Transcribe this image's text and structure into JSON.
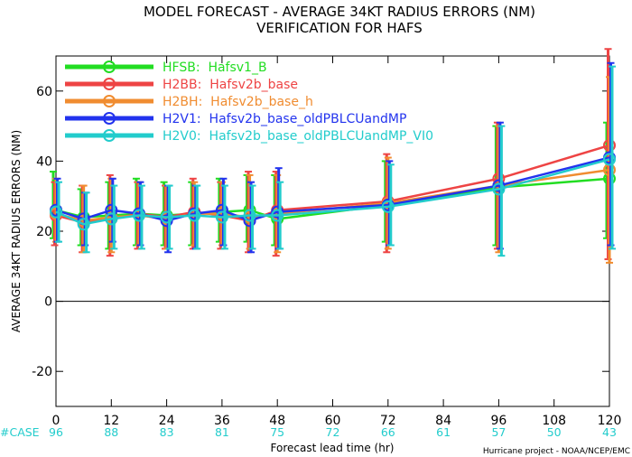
{
  "chart_data": {
    "type": "line",
    "title": "MODEL FORECAST - AVERAGE 34KT RADIUS ERRORS (NM)",
    "subtitle": "VERIFICATION FOR HAFS",
    "xlabel": "Forecast lead time (hr)",
    "ylabel": "AVERAGE 34KT RADIUS ERRORS (NM)",
    "xlim": [
      0,
      120
    ],
    "ylim": [
      -30,
      70
    ],
    "x_ticks": [
      0,
      12,
      24,
      36,
      48,
      60,
      72,
      84,
      96,
      108,
      120
    ],
    "y_ticks": [
      -20,
      0,
      20,
      40,
      60
    ],
    "zero_line": true,
    "grid": false,
    "legend_position": "top-left",
    "case_label": "#CASE",
    "cases": [
      {
        "x": 0,
        "n": "96"
      },
      {
        "x": 12,
        "n": "88"
      },
      {
        "x": 24,
        "n": "83"
      },
      {
        "x": 36,
        "n": "81"
      },
      {
        "x": 48,
        "n": "75"
      },
      {
        "x": 60,
        "n": "72"
      },
      {
        "x": 72,
        "n": "66"
      },
      {
        "x": 84,
        "n": "61"
      },
      {
        "x": 96,
        "n": "57"
      },
      {
        "x": 108,
        "n": "50"
      },
      {
        "x": 120,
        "n": "43"
      }
    ],
    "x": [
      0,
      6,
      12,
      18,
      24,
      30,
      36,
      42,
      48,
      72,
      96,
      120
    ],
    "series": [
      {
        "name": "HFSB:  Hafsv1_B",
        "color": "#22dd22",
        "values": [
          26.0,
          24.0,
          24.5,
          25.0,
          24.5,
          25.0,
          25.5,
          26.0,
          23.5,
          27.5,
          32.5,
          35.0
        ],
        "err_low": [
          18,
          16,
          15,
          16,
          16,
          16,
          17,
          17,
          16,
          17,
          16,
          18
        ],
        "err_high": [
          37,
          32,
          34,
          35,
          34,
          34,
          35,
          36,
          36,
          40,
          50,
          51
        ]
      },
      {
        "name": "H2BB:  Hafsv2b_base",
        "color": "#ee4444",
        "values": [
          24.5,
          22.5,
          23.5,
          25.0,
          24.0,
          25.5,
          24.5,
          23.0,
          26.0,
          28.5,
          35.0,
          44.5
        ],
        "err_low": [
          16,
          14,
          13,
          15,
          15,
          15,
          15,
          14,
          13,
          14,
          15,
          12
        ],
        "err_high": [
          34,
          33,
          36,
          34,
          33,
          35,
          34,
          37,
          37,
          42,
          51,
          72
        ]
      },
      {
        "name": "H2BH:  Hafsv2b_base_h",
        "color": "#f08c30",
        "values": [
          25.0,
          23.0,
          24.0,
          24.5,
          23.5,
          25.0,
          25.0,
          24.0,
          25.0,
          28.0,
          33.0,
          37.5
        ],
        "err_low": [
          17,
          14,
          14,
          16,
          15,
          16,
          16,
          15,
          14,
          15,
          14,
          11
        ],
        "err_high": [
          35,
          33,
          35,
          34,
          33,
          34,
          34,
          36,
          36,
          41,
          50,
          64
        ]
      },
      {
        "name": "H2V1:  Hafsv2b_base_oldPBLCUandMP",
        "color": "#2233ee",
        "values": [
          26.0,
          23.5,
          26.0,
          25.0,
          23.0,
          25.0,
          26.0,
          23.0,
          25.5,
          27.5,
          33.0,
          41.0
        ],
        "err_low": [
          17,
          16,
          17,
          16,
          14,
          15,
          16,
          14,
          15,
          16,
          15,
          16
        ],
        "err_high": [
          35,
          31,
          35,
          34,
          33,
          33,
          35,
          34,
          38,
          40,
          51,
          68
        ]
      },
      {
        "name": "H2V0:  Hafsv2b_base_oldPBLCUandMP_VI0",
        "color": "#22cccc",
        "values": [
          25.5,
          22.0,
          23.5,
          24.5,
          24.0,
          24.5,
          24.0,
          24.5,
          24.5,
          27.0,
          32.0,
          40.5
        ],
        "err_low": [
          17,
          14,
          15,
          15,
          15,
          15,
          15,
          15,
          15,
          16,
          13,
          15
        ],
        "err_high": [
          34,
          31,
          33,
          33,
          33,
          33,
          33,
          33,
          34,
          39,
          50,
          67
        ]
      }
    ],
    "credit": "Hurricane project - NOAA/NCEP/EMC"
  }
}
